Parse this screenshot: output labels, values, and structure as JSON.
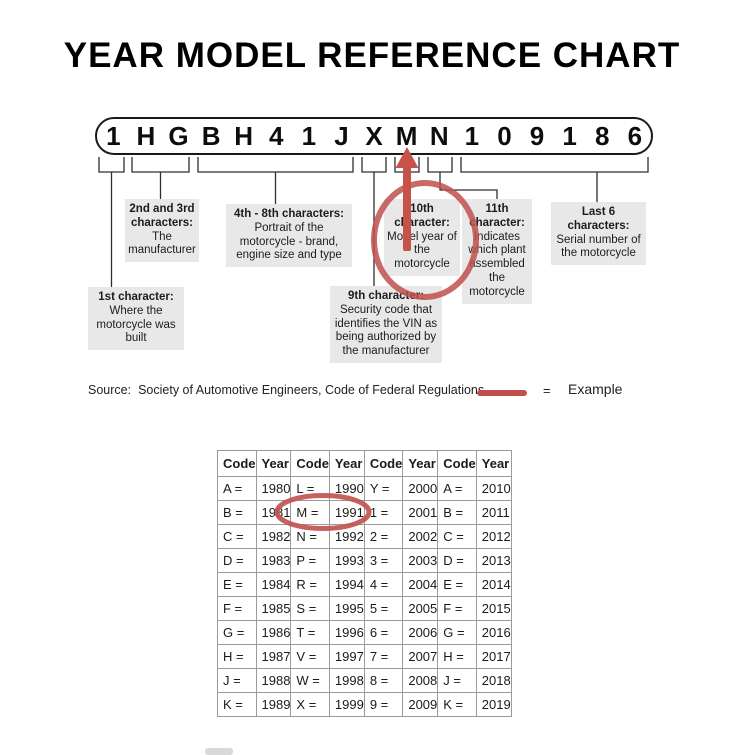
{
  "title": "YEAR MODEL REFERENCE CHART",
  "vin_characters": [
    "1",
    "H",
    "G",
    "B",
    "H",
    "4",
    "1",
    "J",
    "X",
    "M",
    "N",
    "1",
    "0",
    "9",
    "1",
    "8",
    "6"
  ],
  "callouts": {
    "first": {
      "heading": "1st character:",
      "body": "Where the motorcycle was built"
    },
    "second_third": {
      "heading": "2nd and 3rd characters:",
      "body": "The manufacturer"
    },
    "fourth_eighth": {
      "heading": "4th - 8th characters:",
      "body": "Portrait of the motorcycle - brand, engine size and type"
    },
    "ninth": {
      "heading": "9th character:",
      "body": "Security code that identifies the VIN as being authorized by the manufacturer"
    },
    "tenth": {
      "heading": "10th character:",
      "body": "Model year of the motorcycle"
    },
    "eleventh": {
      "heading": "11th character:",
      "body": "Indicates which plant assembled the motorcycle"
    },
    "last_six": {
      "heading": "Last 6 characters:",
      "body": "Serial number of the motorcycle"
    }
  },
  "source": {
    "label": "Source:",
    "text": "Society of Automotive Engineers, Code of Federal Regulations"
  },
  "legend": {
    "symbol": "=",
    "label": "Example"
  },
  "chart_data": {
    "type": "table",
    "columns": [
      "Code",
      "Year",
      "Code",
      "Year",
      "Code",
      "Year",
      "Code",
      "Year"
    ],
    "rows": [
      [
        "A =",
        "1980",
        "L =",
        "1990",
        "Y =",
        "2000",
        "A =",
        "2010"
      ],
      [
        "B =",
        "1981",
        "M =",
        "1991",
        "1 =",
        "2001",
        "B =",
        "2011"
      ],
      [
        "C =",
        "1982",
        "N =",
        "1992",
        "2 =",
        "2002",
        "C =",
        "2012"
      ],
      [
        "D =",
        "1983",
        "P =",
        "1993",
        "3 =",
        "2003",
        "D =",
        "2013"
      ],
      [
        "E =",
        "1984",
        "R =",
        "1994",
        "4 =",
        "2004",
        "E =",
        "2014"
      ],
      [
        "F =",
        "1985",
        "S =",
        "1995",
        "5 =",
        "2005",
        "F =",
        "2015"
      ],
      [
        "G =",
        "1986",
        "T =",
        "1996",
        "6 =",
        "2006",
        "G =",
        "2016"
      ],
      [
        "H =",
        "1987",
        "V =",
        "1997",
        "7 =",
        "2007",
        "H =",
        "2017"
      ],
      [
        "J =",
        "1988",
        "W =",
        "1998",
        "8 =",
        "2008",
        "J =",
        "2018"
      ],
      [
        "K =",
        "1989",
        "X =",
        "1999",
        "9 =",
        "2009",
        "K =",
        "2019"
      ]
    ],
    "highlight": {
      "circled_code": "M =",
      "circled_year": "1991",
      "row_index": 1
    }
  },
  "annotations": {
    "circled_vin_character": "M",
    "circled_callout": "10th character: Model year of the motorcycle"
  },
  "colors": {
    "accent_red": "#c0504d",
    "arrow_red": "#c6524a",
    "callout_bg": "#e8e8e8",
    "table_border": "#9a9a9a",
    "line_black": "#2e2e2e"
  }
}
